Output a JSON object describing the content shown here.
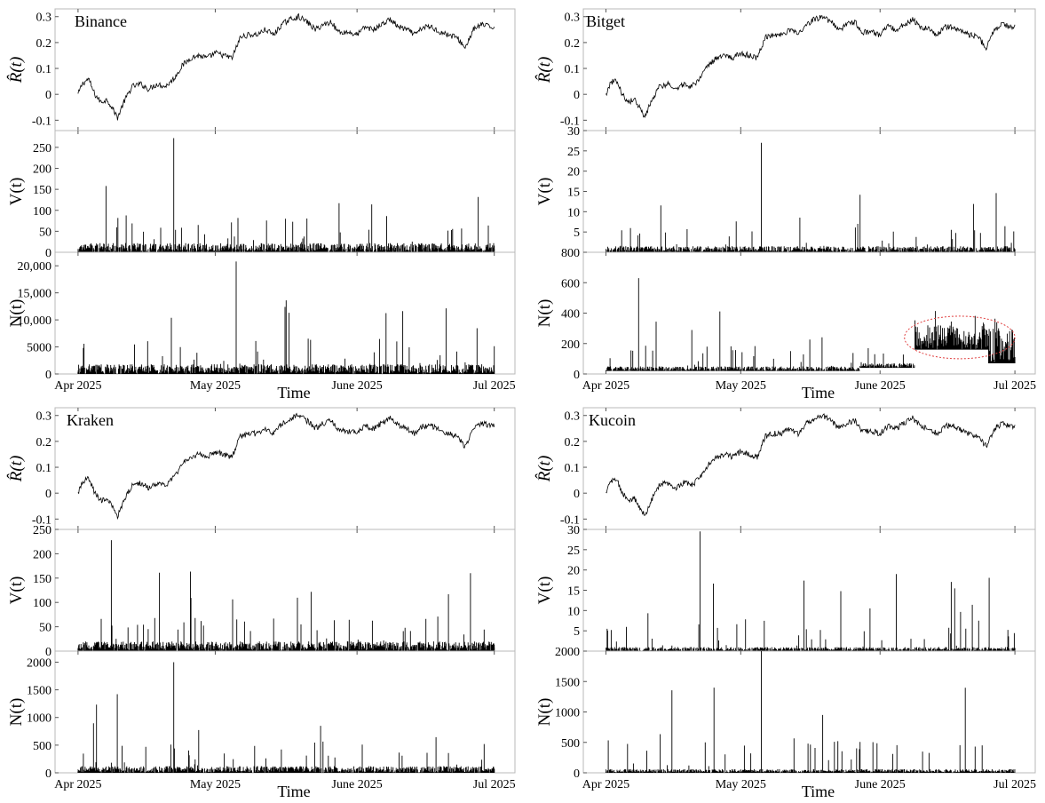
{
  "colors": {
    "series": "#000000",
    "frame": "#b8b8b8",
    "highlight": "#e04040"
  },
  "chart_data": [
    {
      "type": "line",
      "exchange": "Binance",
      "xlabel": "Time",
      "x_ticks": [
        "Apr 2025",
        "May 2025",
        "June 2025",
        "Jul 2025"
      ],
      "x_range": [
        "2025-04-01",
        "2025-07-01"
      ],
      "panels": {
        "R": {
          "ylabel": "R̂(t)",
          "ylim": [
            -0.14,
            0.33
          ],
          "ticks": [
            {
              "v": -0.1,
              "t": "-0.1"
            },
            {
              "v": 0,
              "t": "0"
            },
            {
              "v": 0.1,
              "t": "0.1"
            },
            {
              "v": 0.2,
              "t": "0.2"
            },
            {
              "v": 0.3,
              "t": "0.3"
            }
          ]
        },
        "V": {
          "ylabel": "V(t)",
          "ylim": [
            0,
            290
          ],
          "ticks": [
            {
              "v": 0,
              "t": "0"
            },
            {
              "v": 50,
              "t": "50"
            },
            {
              "v": 100,
              "t": "100"
            },
            {
              "v": 150,
              "t": "150"
            },
            {
              "v": 200,
              "t": "200"
            },
            {
              "v": 250,
              "t": "250"
            }
          ],
          "peak": 272,
          "base": 22
        },
        "N": {
          "ylabel": "N(t)",
          "ylim": [
            0,
            22500
          ],
          "ticks": [
            {
              "v": 0,
              "t": "0"
            },
            {
              "v": 5000,
              "t": "5000"
            },
            {
              "v": 10000,
              "t": "10,000"
            },
            {
              "v": 15000,
              "t": "15,000"
            },
            {
              "v": 20000,
              "t": "20,000"
            }
          ],
          "peak": 20800,
          "base": 1800
        }
      }
    },
    {
      "type": "line",
      "exchange": "Bitget",
      "xlabel": "Time",
      "x_ticks": [
        "Apr 2025",
        "May 2025",
        "June 2025",
        "Jul 2025"
      ],
      "x_range": [
        "2025-04-01",
        "2025-07-01"
      ],
      "panels": {
        "R": {
          "ylabel": "R̂(t)",
          "ylim": [
            -0.14,
            0.33
          ],
          "ticks": [
            {
              "v": -0.1,
              "t": "-0.1"
            },
            {
              "v": 0,
              "t": "0"
            },
            {
              "v": 0.1,
              "t": "0.1"
            },
            {
              "v": 0.2,
              "t": "0.2"
            },
            {
              "v": 0.3,
              "t": "0.3"
            }
          ]
        },
        "V": {
          "ylabel": "V(t)",
          "ylim": [
            0,
            30
          ],
          "ticks": [
            {
              "v": 0,
              "t": ""
            },
            {
              "v": 5,
              "t": "5"
            },
            {
              "v": 10,
              "t": "10"
            },
            {
              "v": 15,
              "t": "15"
            },
            {
              "v": 20,
              "t": "20"
            },
            {
              "v": 25,
              "t": "25"
            },
            {
              "v": 30,
              "t": "30"
            }
          ],
          "peak": 27,
          "base": 1.5
        },
        "N": {
          "ylabel": "N(t)",
          "ylim": [
            0,
            800
          ],
          "ticks": [
            {
              "v": 0,
              "t": "0"
            },
            {
              "v": 200,
              "t": "200"
            },
            {
              "v": 400,
              "t": "400"
            },
            {
              "v": 600,
              "t": "600"
            },
            {
              "v": 800,
              "t": "800"
            }
          ],
          "peak": 630,
          "base": 40,
          "regimes": [
            {
              "from": 0.0,
              "to": 0.62,
              "low": 20,
              "high": 50
            },
            {
              "from": 0.62,
              "to": 0.755,
              "low": 40,
              "high": 70
            },
            {
              "from": 0.755,
              "to": 0.935,
              "low": 160,
              "high": 320
            },
            {
              "from": 0.935,
              "to": 1.0,
              "low": 70,
              "high": 310
            }
          ],
          "highlight": {
            "cx": 0.865,
            "cy": 240,
            "rx": 0.135,
            "ry": 140
          }
        }
      }
    },
    {
      "type": "line",
      "exchange": "Kraken",
      "xlabel": "Time",
      "x_ticks": [
        "Apr 2025",
        "May 2025",
        "June 2025",
        "Jul 2025"
      ],
      "x_range": [
        "2025-04-01",
        "2025-07-01"
      ],
      "panels": {
        "R": {
          "ylabel": "R̂(t)",
          "ylim": [
            -0.14,
            0.33
          ],
          "ticks": [
            {
              "v": -0.1,
              "t": "-0.1"
            },
            {
              "v": 0,
              "t": "0"
            },
            {
              "v": 0.1,
              "t": "0.1"
            },
            {
              "v": 0.2,
              "t": "0.2"
            },
            {
              "v": 0.3,
              "t": "0.3"
            }
          ]
        },
        "V": {
          "ylabel": "V(t)",
          "ylim": [
            0,
            250
          ],
          "ticks": [
            {
              "v": 0,
              "t": "0"
            },
            {
              "v": 50,
              "t": "50"
            },
            {
              "v": 100,
              "t": "100"
            },
            {
              "v": 150,
              "t": "150"
            },
            {
              "v": 200,
              "t": "200"
            },
            {
              "v": 250,
              "t": "250"
            }
          ],
          "peak": 228,
          "base": 20
        },
        "N": {
          "ylabel": "N(t)",
          "ylim": [
            0,
            2200
          ],
          "ticks": [
            {
              "v": 0,
              "t": "0"
            },
            {
              "v": 500,
              "t": "500"
            },
            {
              "v": 1000,
              "t": "1000"
            },
            {
              "v": 1500,
              "t": "1500"
            },
            {
              "v": 2000,
              "t": "2000"
            }
          ],
          "peak": 2000,
          "base": 120
        }
      }
    },
    {
      "type": "line",
      "exchange": "Kucoin",
      "xlabel": "Time",
      "x_ticks": [
        "Apr 2025",
        "May 2025",
        "June 2025",
        "Jul 2025"
      ],
      "x_range": [
        "2025-04-01",
        "2025-07-01"
      ],
      "panels": {
        "R": {
          "ylabel": "R̂(t)",
          "ylim": [
            -0.14,
            0.33
          ],
          "ticks": [
            {
              "v": -0.1,
              "t": "-0.1"
            },
            {
              "v": 0,
              "t": "0"
            },
            {
              "v": 0.1,
              "t": "0.1"
            },
            {
              "v": 0.2,
              "t": "0.2"
            },
            {
              "v": 0.3,
              "t": "0.3"
            }
          ]
        },
        "V": {
          "ylabel": "V(t)",
          "ylim": [
            0,
            30
          ],
          "ticks": [
            {
              "v": 0,
              "t": ""
            },
            {
              "v": 5,
              "t": "5"
            },
            {
              "v": 10,
              "t": "10"
            },
            {
              "v": 15,
              "t": "15"
            },
            {
              "v": 20,
              "t": "20"
            },
            {
              "v": 25,
              "t": "25"
            },
            {
              "v": 30,
              "t": "30"
            }
          ],
          "peak": 29.5,
          "base": 1
        },
        "N": {
          "ylabel": "N(t)",
          "ylim": [
            0,
            2000
          ],
          "ticks": [
            {
              "v": 0,
              "t": "0"
            },
            {
              "v": 500,
              "t": "500"
            },
            {
              "v": 1000,
              "t": "1000"
            },
            {
              "v": 1500,
              "t": "1500"
            },
            {
              "v": 2000,
              "t": "2000"
            }
          ],
          "peak": 2000,
          "base": 60
        }
      }
    }
  ],
  "return_path": {
    "t": [
      0.0,
      0.01,
      0.025,
      0.04,
      0.055,
      0.07,
      0.085,
      0.095,
      0.11,
      0.13,
      0.15,
      0.17,
      0.19,
      0.21,
      0.23,
      0.25,
      0.27,
      0.29,
      0.31,
      0.33,
      0.35,
      0.37,
      0.39,
      0.41,
      0.43,
      0.44,
      0.45,
      0.47,
      0.49,
      0.51,
      0.53,
      0.55,
      0.57,
      0.59,
      0.61,
      0.62,
      0.63,
      0.65,
      0.67,
      0.69,
      0.71,
      0.73,
      0.75,
      0.77,
      0.79,
      0.81,
      0.83,
      0.85,
      0.87,
      0.89,
      0.91,
      0.93,
      0.95,
      0.97,
      0.99,
      1.0
    ],
    "y": [
      0.0,
      0.04,
      0.06,
      0.0,
      -0.03,
      -0.02,
      -0.06,
      -0.09,
      -0.03,
      0.03,
      0.04,
      0.02,
      0.04,
      0.03,
      0.06,
      0.11,
      0.14,
      0.15,
      0.14,
      0.16,
      0.15,
      0.14,
      0.22,
      0.23,
      0.23,
      0.24,
      0.25,
      0.23,
      0.27,
      0.29,
      0.3,
      0.28,
      0.25,
      0.27,
      0.28,
      0.25,
      0.24,
      0.24,
      0.23,
      0.26,
      0.25,
      0.27,
      0.29,
      0.26,
      0.25,
      0.23,
      0.26,
      0.26,
      0.24,
      0.23,
      0.22,
      0.18,
      0.25,
      0.27,
      0.26,
      0.26
    ]
  }
}
